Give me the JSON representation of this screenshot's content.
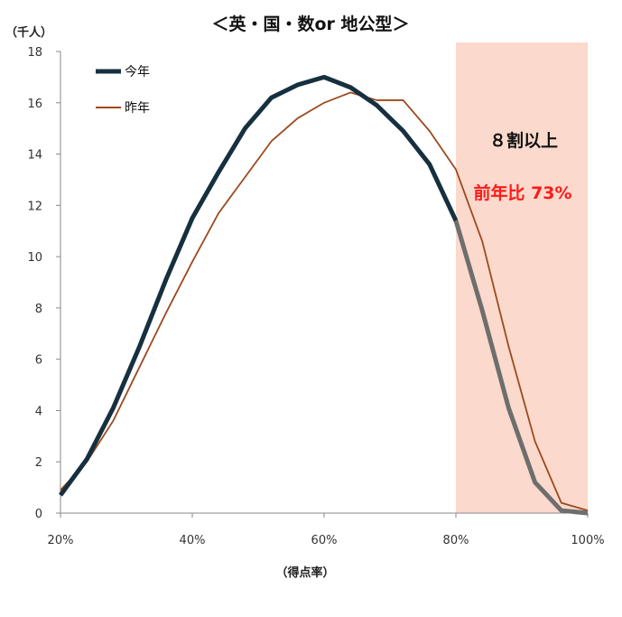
{
  "chart_data": {
    "type": "line",
    "title": "＜英・国・数or 地公型＞",
    "ylabel": "（千人）",
    "xlabel": "（得点率）",
    "xlim": [
      20,
      100
    ],
    "ylim": [
      0,
      18
    ],
    "x_ticks": [
      20,
      40,
      60,
      80,
      100
    ],
    "x_tick_labels": [
      "20%",
      "40%",
      "60%",
      "80%",
      "100%"
    ],
    "y_ticks": [
      0,
      2,
      4,
      6,
      8,
      10,
      12,
      14,
      16,
      18
    ],
    "y_tick_labels": [
      "0",
      "2",
      "4",
      "6",
      "8",
      "10",
      "12",
      "14",
      "16",
      "18"
    ],
    "grid": false,
    "legend_position": "top-left",
    "highlight_region": {
      "x_from": 80,
      "x_to": 100,
      "color": "#fbd9cc"
    },
    "annotations": [
      {
        "text": "８割以上",
        "style": "black"
      },
      {
        "text": "前年比 73%",
        "style": "red"
      }
    ],
    "series": [
      {
        "name": "今年",
        "color": "#17303f",
        "highlight_color": "#6e6e6e",
        "highlight_from_x": 80,
        "x": [
          20,
          24,
          28,
          32,
          36,
          40,
          44,
          48,
          52,
          56,
          60,
          64,
          68,
          72,
          76,
          80,
          84,
          88,
          92,
          96,
          100
        ],
        "values": [
          0.7,
          2.1,
          4.1,
          6.5,
          9.1,
          11.5,
          13.3,
          15.0,
          16.2,
          16.7,
          17.0,
          16.6,
          15.9,
          14.9,
          13.6,
          11.4,
          7.9,
          4.1,
          1.2,
          0.1,
          0.0
        ]
      },
      {
        "name": "昨年",
        "color": "#9c4a1e",
        "x": [
          20,
          24,
          28,
          32,
          36,
          40,
          44,
          48,
          52,
          56,
          60,
          64,
          68,
          72,
          76,
          80,
          84,
          88,
          92,
          96,
          100
        ],
        "values": [
          0.9,
          2.0,
          3.6,
          5.7,
          7.8,
          9.8,
          11.7,
          13.1,
          14.5,
          15.4,
          16.0,
          16.4,
          16.1,
          16.1,
          14.9,
          13.4,
          10.6,
          6.5,
          2.8,
          0.4,
          0.1
        ]
      }
    ]
  }
}
